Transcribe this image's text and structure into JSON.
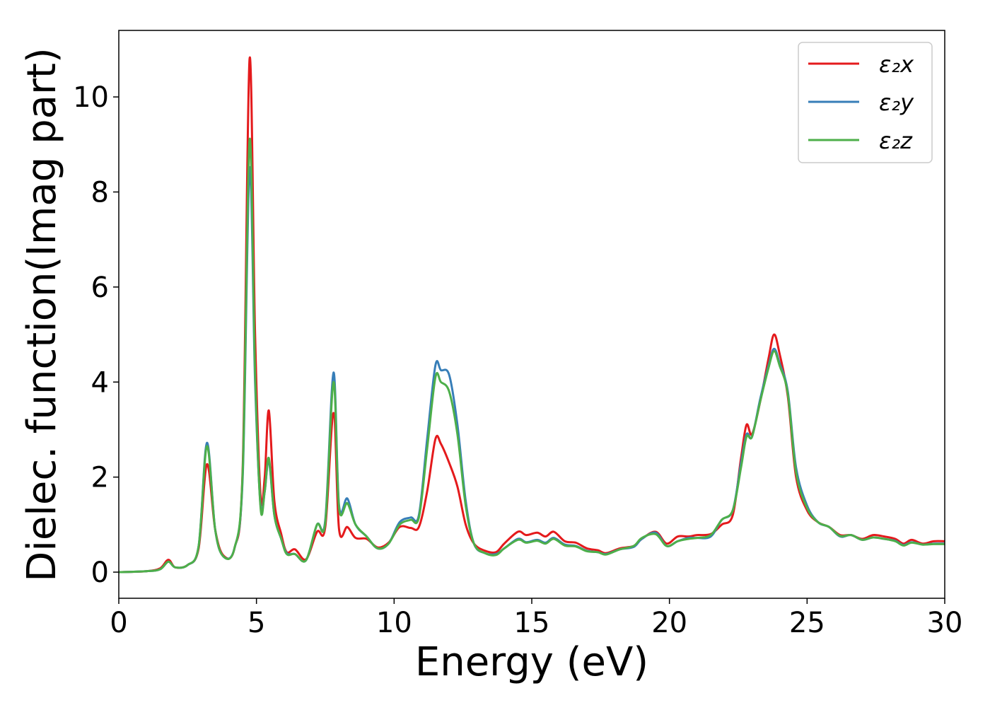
{
  "chart_data": {
    "type": "line",
    "xlabel": "Energy (eV)",
    "ylabel": "Dielec. function(Imag part)",
    "xlim": [
      0,
      30
    ],
    "ylim": [
      -0.55,
      11.4
    ],
    "xticks": [
      0,
      5,
      10,
      15,
      20,
      25,
      30
    ],
    "yticks": [
      0,
      2,
      4,
      6,
      8,
      10
    ],
    "grid": false,
    "legend": {
      "position": "top-right"
    },
    "series": [
      {
        "name": "ε₂x",
        "color": "#e41a1c",
        "points": [
          [
            0,
            0
          ],
          [
            1,
            0.02
          ],
          [
            1.5,
            0.08
          ],
          [
            1.8,
            0.26
          ],
          [
            2.05,
            0.1
          ],
          [
            2.5,
            0.15
          ],
          [
            2.9,
            0.5
          ],
          [
            3.2,
            2.27
          ],
          [
            3.5,
            0.9
          ],
          [
            3.8,
            0.35
          ],
          [
            4.2,
            0.5
          ],
          [
            4.5,
            2.2
          ],
          [
            4.75,
            10.8
          ],
          [
            4.95,
            5.0
          ],
          [
            5.15,
            1.6
          ],
          [
            5.3,
            2.0
          ],
          [
            5.45,
            3.4
          ],
          [
            5.65,
            1.5
          ],
          [
            5.9,
            0.8
          ],
          [
            6.1,
            0.42
          ],
          [
            6.4,
            0.48
          ],
          [
            6.8,
            0.27
          ],
          [
            7.2,
            0.85
          ],
          [
            7.5,
            0.95
          ],
          [
            7.8,
            3.35
          ],
          [
            8.0,
            0.9
          ],
          [
            8.3,
            0.95
          ],
          [
            8.6,
            0.72
          ],
          [
            9.0,
            0.7
          ],
          [
            9.4,
            0.52
          ],
          [
            9.8,
            0.62
          ],
          [
            10.2,
            0.95
          ],
          [
            10.6,
            0.93
          ],
          [
            10.9,
            0.95
          ],
          [
            11.2,
            1.7
          ],
          [
            11.5,
            2.8
          ],
          [
            11.7,
            2.7
          ],
          [
            12.0,
            2.3
          ],
          [
            12.3,
            1.8
          ],
          [
            12.6,
            1.0
          ],
          [
            12.9,
            0.6
          ],
          [
            13.3,
            0.45
          ],
          [
            13.7,
            0.42
          ],
          [
            14.0,
            0.6
          ],
          [
            14.5,
            0.85
          ],
          [
            14.8,
            0.78
          ],
          [
            15.2,
            0.83
          ],
          [
            15.5,
            0.75
          ],
          [
            15.8,
            0.85
          ],
          [
            16.2,
            0.65
          ],
          [
            16.6,
            0.62
          ],
          [
            17.0,
            0.5
          ],
          [
            17.4,
            0.46
          ],
          [
            17.7,
            0.4
          ],
          [
            18.2,
            0.5
          ],
          [
            18.7,
            0.55
          ],
          [
            19.0,
            0.7
          ],
          [
            19.5,
            0.85
          ],
          [
            19.9,
            0.6
          ],
          [
            20.3,
            0.75
          ],
          [
            20.7,
            0.75
          ],
          [
            21.0,
            0.78
          ],
          [
            21.5,
            0.8
          ],
          [
            21.9,
            1.0
          ],
          [
            22.3,
            1.2
          ],
          [
            22.6,
            2.4
          ],
          [
            22.8,
            3.1
          ],
          [
            23.0,
            2.9
          ],
          [
            23.3,
            3.6
          ],
          [
            23.6,
            4.5
          ],
          [
            23.8,
            5.0
          ],
          [
            24.0,
            4.6
          ],
          [
            24.3,
            3.7
          ],
          [
            24.6,
            2.0
          ],
          [
            25.0,
            1.3
          ],
          [
            25.4,
            1.05
          ],
          [
            25.8,
            0.95
          ],
          [
            26.2,
            0.78
          ],
          [
            26.6,
            0.78
          ],
          [
            27.0,
            0.7
          ],
          [
            27.4,
            0.78
          ],
          [
            27.8,
            0.75
          ],
          [
            28.2,
            0.7
          ],
          [
            28.5,
            0.6
          ],
          [
            28.8,
            0.68
          ],
          [
            29.2,
            0.6
          ],
          [
            29.6,
            0.65
          ],
          [
            30,
            0.65
          ]
        ]
      },
      {
        "name": "ε₂y",
        "color": "#377eb8",
        "points": [
          [
            0,
            0
          ],
          [
            1,
            0.02
          ],
          [
            1.5,
            0.06
          ],
          [
            1.8,
            0.22
          ],
          [
            2.05,
            0.1
          ],
          [
            2.5,
            0.15
          ],
          [
            2.9,
            0.55
          ],
          [
            3.2,
            2.72
          ],
          [
            3.5,
            0.9
          ],
          [
            3.8,
            0.33
          ],
          [
            4.2,
            0.5
          ],
          [
            4.5,
            2.0
          ],
          [
            4.75,
            8.5
          ],
          [
            4.95,
            4.0
          ],
          [
            5.15,
            1.4
          ],
          [
            5.3,
            1.7
          ],
          [
            5.45,
            2.35
          ],
          [
            5.65,
            1.2
          ],
          [
            5.9,
            0.7
          ],
          [
            6.1,
            0.4
          ],
          [
            6.4,
            0.38
          ],
          [
            6.8,
            0.25
          ],
          [
            7.2,
            1.0
          ],
          [
            7.5,
            1.1
          ],
          [
            7.8,
            4.2
          ],
          [
            8.0,
            1.4
          ],
          [
            8.3,
            1.55
          ],
          [
            8.6,
            1.0
          ],
          [
            9.0,
            0.75
          ],
          [
            9.4,
            0.5
          ],
          [
            9.8,
            0.6
          ],
          [
            10.2,
            1.05
          ],
          [
            10.6,
            1.15
          ],
          [
            10.9,
            1.2
          ],
          [
            11.2,
            2.8
          ],
          [
            11.5,
            4.35
          ],
          [
            11.7,
            4.25
          ],
          [
            12.0,
            4.15
          ],
          [
            12.3,
            3.1
          ],
          [
            12.6,
            1.5
          ],
          [
            12.9,
            0.6
          ],
          [
            13.3,
            0.4
          ],
          [
            13.7,
            0.38
          ],
          [
            14.0,
            0.5
          ],
          [
            14.5,
            0.7
          ],
          [
            14.8,
            0.63
          ],
          [
            15.2,
            0.68
          ],
          [
            15.5,
            0.62
          ],
          [
            15.8,
            0.72
          ],
          [
            16.2,
            0.58
          ],
          [
            16.6,
            0.55
          ],
          [
            17.0,
            0.45
          ],
          [
            17.4,
            0.42
          ],
          [
            17.7,
            0.38
          ],
          [
            18.2,
            0.48
          ],
          [
            18.7,
            0.53
          ],
          [
            19.0,
            0.7
          ],
          [
            19.5,
            0.83
          ],
          [
            19.9,
            0.55
          ],
          [
            20.3,
            0.65
          ],
          [
            20.7,
            0.72
          ],
          [
            21.0,
            0.72
          ],
          [
            21.5,
            0.75
          ],
          [
            21.9,
            1.1
          ],
          [
            22.3,
            1.3
          ],
          [
            22.6,
            2.3
          ],
          [
            22.8,
            2.9
          ],
          [
            23.0,
            2.85
          ],
          [
            23.3,
            3.65
          ],
          [
            23.6,
            4.35
          ],
          [
            23.8,
            4.7
          ],
          [
            24.0,
            4.4
          ],
          [
            24.3,
            3.8
          ],
          [
            24.6,
            2.2
          ],
          [
            25.0,
            1.4
          ],
          [
            25.4,
            1.05
          ],
          [
            25.8,
            0.95
          ],
          [
            26.2,
            0.75
          ],
          [
            26.6,
            0.78
          ],
          [
            27.0,
            0.68
          ],
          [
            27.4,
            0.73
          ],
          [
            27.8,
            0.7
          ],
          [
            28.2,
            0.66
          ],
          [
            28.5,
            0.57
          ],
          [
            28.8,
            0.63
          ],
          [
            29.2,
            0.58
          ],
          [
            29.6,
            0.6
          ],
          [
            30,
            0.6
          ]
        ]
      },
      {
        "name": "ε₂z",
        "color": "#4daf4a",
        "points": [
          [
            0,
            0
          ],
          [
            1,
            0.02
          ],
          [
            1.5,
            0.06
          ],
          [
            1.8,
            0.22
          ],
          [
            2.05,
            0.1
          ],
          [
            2.5,
            0.15
          ],
          [
            2.9,
            0.55
          ],
          [
            3.2,
            2.65
          ],
          [
            3.5,
            0.9
          ],
          [
            3.8,
            0.33
          ],
          [
            4.2,
            0.5
          ],
          [
            4.5,
            2.1
          ],
          [
            4.75,
            9.1
          ],
          [
            4.95,
            4.2
          ],
          [
            5.15,
            1.35
          ],
          [
            5.3,
            1.7
          ],
          [
            5.45,
            2.4
          ],
          [
            5.65,
            1.2
          ],
          [
            5.9,
            0.7
          ],
          [
            6.1,
            0.38
          ],
          [
            6.4,
            0.38
          ],
          [
            6.8,
            0.25
          ],
          [
            7.2,
            1.0
          ],
          [
            7.5,
            1.05
          ],
          [
            7.8,
            4.0
          ],
          [
            8.0,
            1.35
          ],
          [
            8.3,
            1.45
          ],
          [
            8.6,
            1.0
          ],
          [
            9.0,
            0.75
          ],
          [
            9.4,
            0.5
          ],
          [
            9.8,
            0.6
          ],
          [
            10.2,
            1.0
          ],
          [
            10.6,
            1.1
          ],
          [
            10.9,
            1.15
          ],
          [
            11.2,
            2.6
          ],
          [
            11.5,
            4.1
          ],
          [
            11.7,
            4.0
          ],
          [
            12.0,
            3.8
          ],
          [
            12.3,
            2.9
          ],
          [
            12.6,
            1.4
          ],
          [
            12.9,
            0.6
          ],
          [
            13.3,
            0.4
          ],
          [
            13.7,
            0.36
          ],
          [
            14.0,
            0.5
          ],
          [
            14.5,
            0.68
          ],
          [
            14.8,
            0.62
          ],
          [
            15.2,
            0.66
          ],
          [
            15.5,
            0.6
          ],
          [
            15.8,
            0.7
          ],
          [
            16.2,
            0.56
          ],
          [
            16.6,
            0.54
          ],
          [
            17.0,
            0.44
          ],
          [
            17.4,
            0.42
          ],
          [
            17.7,
            0.37
          ],
          [
            18.2,
            0.48
          ],
          [
            18.7,
            0.55
          ],
          [
            19.0,
            0.72
          ],
          [
            19.5,
            0.8
          ],
          [
            19.9,
            0.55
          ],
          [
            20.3,
            0.65
          ],
          [
            20.7,
            0.7
          ],
          [
            21.0,
            0.72
          ],
          [
            21.5,
            0.78
          ],
          [
            21.9,
            1.1
          ],
          [
            22.3,
            1.3
          ],
          [
            22.6,
            2.2
          ],
          [
            22.8,
            2.85
          ],
          [
            23.0,
            2.85
          ],
          [
            23.3,
            3.6
          ],
          [
            23.6,
            4.3
          ],
          [
            23.8,
            4.65
          ],
          [
            24.0,
            4.35
          ],
          [
            24.3,
            3.75
          ],
          [
            24.6,
            2.1
          ],
          [
            25.0,
            1.35
          ],
          [
            25.4,
            1.05
          ],
          [
            25.8,
            0.95
          ],
          [
            26.2,
            0.76
          ],
          [
            26.6,
            0.78
          ],
          [
            27.0,
            0.68
          ],
          [
            27.4,
            0.73
          ],
          [
            27.8,
            0.7
          ],
          [
            28.2,
            0.65
          ],
          [
            28.5,
            0.56
          ],
          [
            28.8,
            0.62
          ],
          [
            29.2,
            0.58
          ],
          [
            29.6,
            0.59
          ],
          [
            30,
            0.59
          ]
        ]
      }
    ]
  }
}
